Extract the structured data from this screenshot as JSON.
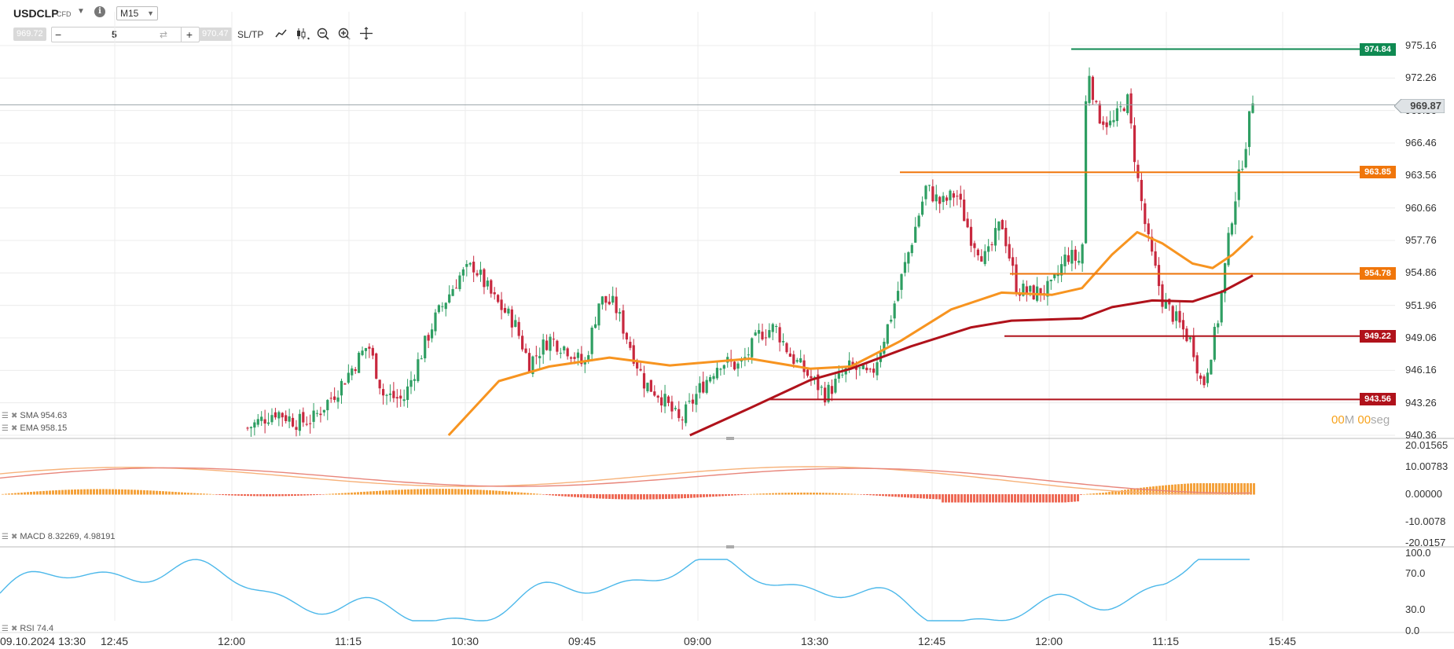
{
  "header": {
    "symbol": "USDCLP",
    "instrument_type": "CFD",
    "timeframe": "M15",
    "bid": "969.72",
    "ask": "970.47",
    "quantity": "5",
    "sltp_label": "SL/TP"
  },
  "colors": {
    "up_candle": "#2e9e62",
    "down_candle": "#c8283e",
    "ema": "#f79420",
    "sma": "#b0121b",
    "green_line": "#0f8a52",
    "orange_line": "#f0760b",
    "red_line": "#b0121b",
    "rsi": "#4cb8ea"
  },
  "price_axis": {
    "ticks": [
      "975.16",
      "972.26",
      "969.36",
      "966.46",
      "963.56",
      "960.66",
      "957.76",
      "954.86",
      "951.96",
      "949.06",
      "946.16",
      "943.26",
      "940.36"
    ],
    "current_price": "969.87"
  },
  "level_tags": [
    {
      "value": "974.84",
      "color": "#0f8a52"
    },
    {
      "value": "963.85",
      "color": "#f0760b"
    },
    {
      "value": "954.78",
      "color": "#f0760b"
    },
    {
      "value": "949.22",
      "color": "#b0121b"
    },
    {
      "value": "943.56",
      "color": "#b0121b"
    }
  ],
  "timer": {
    "minutes": "00",
    "m_label": "M",
    "seconds": "00",
    "s_label": "seg"
  },
  "legends": {
    "sma": "SMA 954.63",
    "ema": "EMA 958.15",
    "macd": "MACD 8.32269, 4.98191",
    "rsi": "RSI 74.4"
  },
  "macd_axis": [
    "20.01565",
    "10.00783",
    "0.00000",
    "-10.0078",
    "-20.0157"
  ],
  "rsi_axis": [
    "100.0",
    "70.0",
    "30.0",
    "0.0"
  ],
  "time_axis": [
    "09.10.2024 13:30",
    "12:45",
    "12:00",
    "11:15",
    "10:30",
    "09:45",
    "09:00",
    "13:30",
    "12:45",
    "12:00",
    "11:15",
    "15:45"
  ],
  "chart_data": {
    "type": "candlestick",
    "ylim": [
      940.36,
      975.16
    ],
    "grid": true,
    "horizontal_levels": [
      974.84,
      963.85,
      954.78,
      949.22,
      943.56
    ],
    "current_price": 969.87,
    "close_path": [
      {
        "t": 0.0,
        "p": 941.0
      },
      {
        "t": 0.028,
        "p": 942.5
      },
      {
        "t": 0.05,
        "p": 941.5
      },
      {
        "t": 0.065,
        "p": 941.8
      },
      {
        "t": 0.09,
        "p": 944.5
      },
      {
        "t": 0.105,
        "p": 946.5
      },
      {
        "t": 0.12,
        "p": 948.5
      },
      {
        "t": 0.135,
        "p": 944.0
      },
      {
        "t": 0.155,
        "p": 943.5
      },
      {
        "t": 0.17,
        "p": 947.0
      },
      {
        "t": 0.185,
        "p": 950.5
      },
      {
        "t": 0.21,
        "p": 954.5
      },
      {
        "t": 0.225,
        "p": 955.5
      },
      {
        "t": 0.245,
        "p": 952.5
      },
      {
        "t": 0.265,
        "p": 950.5
      },
      {
        "t": 0.28,
        "p": 946.8
      },
      {
        "t": 0.3,
        "p": 949.0
      },
      {
        "t": 0.32,
        "p": 948.0
      },
      {
        "t": 0.335,
        "p": 946.5
      },
      {
        "t": 0.35,
        "p": 952.5
      },
      {
        "t": 0.365,
        "p": 952.0
      },
      {
        "t": 0.38,
        "p": 948.5
      },
      {
        "t": 0.395,
        "p": 945.0
      },
      {
        "t": 0.41,
        "p": 944.0
      },
      {
        "t": 0.43,
        "p": 941.5
      },
      {
        "t": 0.45,
        "p": 944.5
      },
      {
        "t": 0.47,
        "p": 947.0
      },
      {
        "t": 0.49,
        "p": 946.5
      },
      {
        "t": 0.51,
        "p": 949.5
      },
      {
        "t": 0.525,
        "p": 950.0
      },
      {
        "t": 0.54,
        "p": 947.5
      },
      {
        "t": 0.56,
        "p": 945.5
      },
      {
        "t": 0.575,
        "p": 944.0
      },
      {
        "t": 0.6,
        "p": 946.5
      },
      {
        "t": 0.62,
        "p": 945.5
      },
      {
        "t": 0.64,
        "p": 951.0
      },
      {
        "t": 0.66,
        "p": 957.5
      },
      {
        "t": 0.675,
        "p": 962.5
      },
      {
        "t": 0.69,
        "p": 961.0
      },
      {
        "t": 0.705,
        "p": 962.0
      },
      {
        "t": 0.72,
        "p": 958.0
      },
      {
        "t": 0.735,
        "p": 956.0
      },
      {
        "t": 0.75,
        "p": 959.5
      },
      {
        "t": 0.765,
        "p": 953.5
      },
      {
        "t": 0.78,
        "p": 953.0
      },
      {
        "t": 0.8,
        "p": 953.5
      },
      {
        "t": 0.815,
        "p": 956.5
      },
      {
        "t": 0.83,
        "p": 955.8
      },
      {
        "t": 0.835,
        "p": 974.0
      },
      {
        "t": 0.845,
        "p": 969.0
      },
      {
        "t": 0.86,
        "p": 968.0
      },
      {
        "t": 0.875,
        "p": 970.5
      },
      {
        "t": 0.885,
        "p": 963.5
      },
      {
        "t": 0.895,
        "p": 958.0
      },
      {
        "t": 0.91,
        "p": 952.5
      },
      {
        "t": 0.925,
        "p": 950.5
      },
      {
        "t": 0.94,
        "p": 948.5
      },
      {
        "t": 0.95,
        "p": 944.5
      },
      {
        "t": 0.965,
        "p": 950.5
      },
      {
        "t": 0.98,
        "p": 960.5
      },
      {
        "t": 0.992,
        "p": 966.0
      },
      {
        "t": 1.0,
        "p": 970.5
      }
    ],
    "series": [
      {
        "name": "EMA",
        "points": [
          {
            "t": 0.2,
            "p": 940.36
          },
          {
            "t": 0.25,
            "p": 945.2
          },
          {
            "t": 0.3,
            "p": 946.5
          },
          {
            "t": 0.36,
            "p": 947.3
          },
          {
            "t": 0.42,
            "p": 946.6
          },
          {
            "t": 0.5,
            "p": 947.2
          },
          {
            "t": 0.56,
            "p": 946.3
          },
          {
            "t": 0.6,
            "p": 946.5
          },
          {
            "t": 0.65,
            "p": 948.8
          },
          {
            "t": 0.7,
            "p": 951.6
          },
          {
            "t": 0.75,
            "p": 953.1
          },
          {
            "t": 0.8,
            "p": 952.9
          },
          {
            "t": 0.83,
            "p": 953.5
          },
          {
            "t": 0.86,
            "p": 956.5
          },
          {
            "t": 0.885,
            "p": 958.5
          },
          {
            "t": 0.91,
            "p": 957.5
          },
          {
            "t": 0.94,
            "p": 955.7
          },
          {
            "t": 0.96,
            "p": 955.3
          },
          {
            "t": 0.98,
            "p": 956.5
          },
          {
            "t": 1.0,
            "p": 958.15
          }
        ]
      },
      {
        "name": "SMA",
        "points": [
          {
            "t": 0.44,
            "p": 940.36
          },
          {
            "t": 0.5,
            "p": 942.8
          },
          {
            "t": 0.56,
            "p": 945.3
          },
          {
            "t": 0.6,
            "p": 946.3
          },
          {
            "t": 0.66,
            "p": 948.3
          },
          {
            "t": 0.72,
            "p": 950.0
          },
          {
            "t": 0.76,
            "p": 950.6
          },
          {
            "t": 0.83,
            "p": 950.8
          },
          {
            "t": 0.86,
            "p": 951.8
          },
          {
            "t": 0.9,
            "p": 952.4
          },
          {
            "t": 0.94,
            "p": 952.3
          },
          {
            "t": 0.97,
            "p": 953.2
          },
          {
            "t": 1.0,
            "p": 954.63
          }
        ]
      }
    ]
  }
}
